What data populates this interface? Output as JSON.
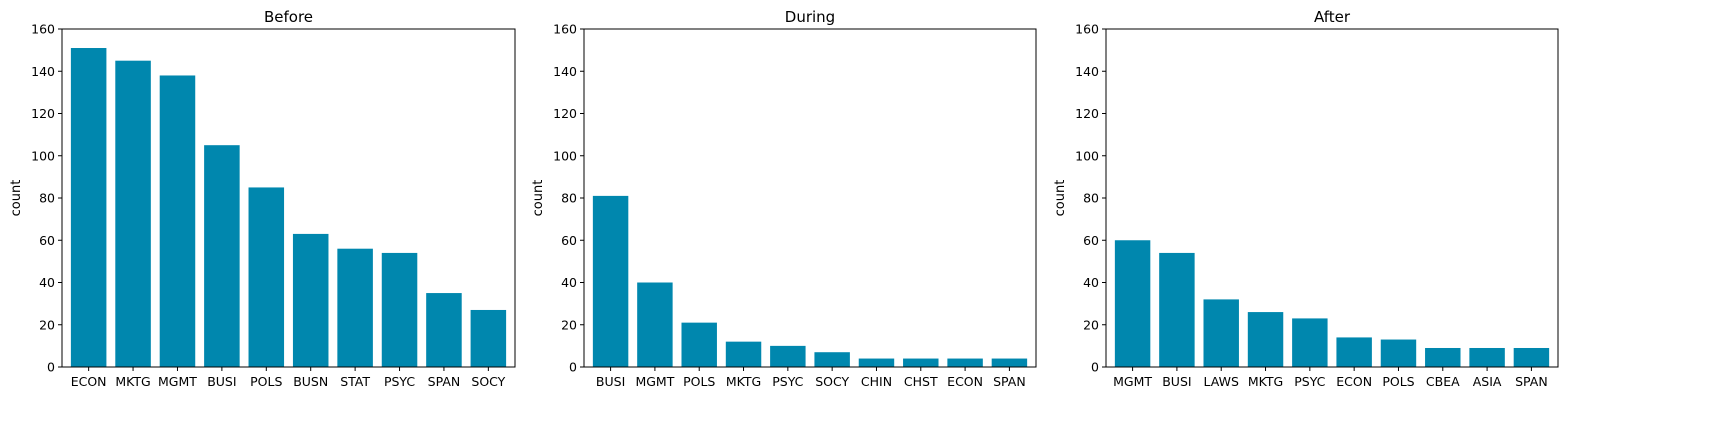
{
  "bar_color": "#0087ae",
  "chart_data": [
    {
      "type": "bar",
      "title": "Before",
      "xlabel": "",
      "ylabel": "count",
      "ylim": [
        0,
        160
      ],
      "yticks": [
        0,
        20,
        40,
        60,
        80,
        100,
        120,
        140,
        160
      ],
      "categories": [
        "ECON",
        "MKTG",
        "MGMT",
        "BUSI",
        "POLS",
        "BUSN",
        "STAT",
        "PSYC",
        "SPAN",
        "SOCY"
      ],
      "values": [
        151,
        145,
        138,
        105,
        85,
        63,
        56,
        54,
        35,
        27
      ]
    },
    {
      "type": "bar",
      "title": "During",
      "xlabel": "",
      "ylabel": "count",
      "ylim": [
        0,
        160
      ],
      "yticks": [
        0,
        20,
        40,
        60,
        80,
        100,
        120,
        140,
        160
      ],
      "categories": [
        "BUSI",
        "MGMT",
        "POLS",
        "MKTG",
        "PSYC",
        "SOCY",
        "CHIN",
        "CHST",
        "ECON",
        "SPAN"
      ],
      "values": [
        81,
        40,
        21,
        12,
        10,
        7,
        4,
        4,
        4,
        4
      ]
    },
    {
      "type": "bar",
      "title": "After",
      "xlabel": "",
      "ylabel": "count",
      "ylim": [
        0,
        160
      ],
      "yticks": [
        0,
        20,
        40,
        60,
        80,
        100,
        120,
        140,
        160
      ],
      "categories": [
        "MGMT",
        "BUSI",
        "LAWS",
        "MKTG",
        "PSYC",
        "ECON",
        "POLS",
        "CBEA",
        "ASIA",
        "SPAN"
      ],
      "values": [
        60,
        54,
        32,
        26,
        23,
        14,
        13,
        9,
        9,
        9
      ]
    }
  ]
}
